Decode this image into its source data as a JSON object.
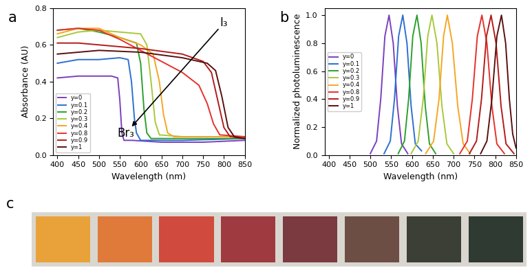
{
  "chart_data": [
    {
      "type": "line",
      "title": "a",
      "x_label": "Wavelength (nm)",
      "y_label": "Absorbance (AU)",
      "xlim": [
        390,
        850
      ],
      "xticks": [
        400,
        450,
        500,
        550,
        600,
        650,
        700,
        750,
        800,
        850
      ],
      "ylim": [
        0,
        0.8
      ],
      "yticks": [
        {
          "value": 0,
          "label": "0.0"
        },
        0.2,
        0.4,
        0.6,
        0.8
      ],
      "legend": "lower left",
      "annotations": [
        {
          "text": "I₃",
          "x": 800,
          "y": 0.72
        },
        {
          "text": "Br₃",
          "x": 565,
          "y": 0.12
        }
      ],
      "series": [
        {
          "name": "y=0",
          "color": "#7b3fbf",
          "x": [
            400,
            450,
            500,
            530,
            545,
            550,
            555,
            560,
            580,
            650,
            750,
            850
          ],
          "values": [
            0.42,
            0.43,
            0.43,
            0.43,
            0.42,
            0.3,
            0.12,
            0.08,
            0.08,
            0.07,
            0.07,
            0.08
          ]
        },
        {
          "name": "y=0.1",
          "color": "#2c6fd1",
          "x": [
            400,
            450,
            500,
            550,
            570,
            578,
            585,
            590,
            600,
            700,
            850
          ],
          "values": [
            0.5,
            0.52,
            0.52,
            0.53,
            0.52,
            0.4,
            0.2,
            0.12,
            0.08,
            0.08,
            0.09
          ]
        },
        {
          "name": "y=0.2",
          "color": "#2ca02c",
          "x": [
            400,
            450,
            500,
            550,
            590,
            600,
            608,
            615,
            625,
            700,
            850
          ],
          "values": [
            0.68,
            0.69,
            0.67,
            0.64,
            0.61,
            0.5,
            0.25,
            0.12,
            0.09,
            0.09,
            0.09
          ]
        },
        {
          "name": "y=0.3",
          "color": "#a8c83a",
          "x": [
            400,
            450,
            500,
            550,
            600,
            615,
            625,
            635,
            645,
            700,
            850
          ],
          "values": [
            0.64,
            0.67,
            0.68,
            0.67,
            0.66,
            0.6,
            0.4,
            0.18,
            0.11,
            0.1,
            0.1
          ]
        },
        {
          "name": "y=0.4",
          "color": "#f5a623",
          "x": [
            400,
            450,
            500,
            550,
            600,
            630,
            645,
            655,
            665,
            680,
            850
          ],
          "values": [
            0.66,
            0.69,
            0.69,
            0.64,
            0.6,
            0.55,
            0.4,
            0.22,
            0.12,
            0.1,
            0.1
          ]
        },
        {
          "name": "y=0.8",
          "color": "#e8302a",
          "x": [
            400,
            450,
            500,
            550,
            600,
            650,
            700,
            740,
            760,
            775,
            790,
            850
          ],
          "values": [
            0.68,
            0.69,
            0.68,
            0.63,
            0.57,
            0.51,
            0.45,
            0.38,
            0.28,
            0.17,
            0.11,
            0.1
          ]
        },
        {
          "name": "y=0.9",
          "color": "#b31b1b",
          "x": [
            400,
            450,
            500,
            600,
            700,
            750,
            770,
            785,
            800,
            815,
            850
          ],
          "values": [
            0.61,
            0.61,
            0.6,
            0.58,
            0.55,
            0.51,
            0.45,
            0.3,
            0.15,
            0.1,
            0.09
          ]
        },
        {
          "name": "y=1",
          "color": "#5a0f0f",
          "x": [
            400,
            450,
            500,
            600,
            700,
            760,
            780,
            795,
            810,
            825,
            850
          ],
          "values": [
            0.55,
            0.56,
            0.57,
            0.56,
            0.53,
            0.5,
            0.46,
            0.32,
            0.15,
            0.1,
            0.09
          ]
        }
      ]
    },
    {
      "type": "line",
      "title": "b",
      "x_label": "Wavelength (nm)",
      "y_label": "Normalized photoluminescence",
      "xlim": [
        390,
        850
      ],
      "xticks": [
        400,
        450,
        500,
        550,
        600,
        650,
        700,
        750,
        800,
        850
      ],
      "ylim": [
        0,
        1.05
      ],
      "yticks": [
        {
          "value": 0,
          "label": "0.0"
        },
        0.2,
        0.4,
        0.6,
        0.8,
        {
          "value": 1,
          "label": "1.0"
        }
      ],
      "legend": "center left",
      "series": [
        {
          "name": "y=0",
          "color": "#7b3fbf",
          "x": [
            500,
            515,
            525,
            535,
            545,
            555,
            565,
            575,
            590
          ],
          "values": [
            0.01,
            0.1,
            0.4,
            0.85,
            1.0,
            0.8,
            0.35,
            0.08,
            0.01
          ]
        },
        {
          "name": "y=0.1",
          "color": "#2c6fd1",
          "x": [
            533,
            548,
            558,
            568,
            578,
            588,
            598,
            608,
            623
          ],
          "values": [
            0.01,
            0.1,
            0.4,
            0.85,
            1.0,
            0.8,
            0.35,
            0.08,
            0.03
          ]
        },
        {
          "name": "y=0.2",
          "color": "#2ca02c",
          "x": [
            567,
            582,
            592,
            602,
            612,
            622,
            632,
            642,
            657
          ],
          "values": [
            0.01,
            0.1,
            0.4,
            0.85,
            1.0,
            0.8,
            0.35,
            0.08,
            0.01
          ]
        },
        {
          "name": "y=0.3",
          "color": "#a8c83a",
          "x": [
            598,
            615,
            627,
            638,
            648,
            660,
            672,
            684,
            700
          ],
          "values": [
            0.01,
            0.1,
            0.4,
            0.85,
            1.0,
            0.8,
            0.35,
            0.08,
            0.01
          ]
        },
        {
          "name": "y=0.4",
          "color": "#f5a623",
          "x": [
            633,
            652,
            665,
            676,
            685,
            697,
            710,
            723,
            740
          ],
          "values": [
            0.01,
            0.1,
            0.4,
            0.85,
            1.0,
            0.8,
            0.35,
            0.08,
            0.01
          ]
        },
        {
          "name": "y=0.8",
          "color": "#e8302a",
          "x": [
            715,
            733,
            745,
            757,
            768,
            780,
            792,
            804,
            822
          ],
          "values": [
            0.01,
            0.1,
            0.4,
            0.85,
            1.0,
            0.8,
            0.35,
            0.08,
            0.01
          ]
        },
        {
          "name": "y=0.9",
          "color": "#b31b1b",
          "x": [
            738,
            755,
            767,
            779,
            790,
            802,
            814,
            826,
            845
          ],
          "values": [
            0.01,
            0.1,
            0.4,
            0.85,
            1.0,
            0.8,
            0.35,
            0.08,
            0.01
          ]
        },
        {
          "name": "y=1",
          "color": "#5a0f0f",
          "x": [
            765,
            780,
            792,
            804,
            815,
            825,
            834,
            842,
            850
          ],
          "values": [
            0.01,
            0.1,
            0.4,
            0.85,
            1.0,
            0.8,
            0.4,
            0.15,
            0.05
          ]
        }
      ]
    },
    {
      "type": "swatches",
      "title": "c",
      "tick_labels": false,
      "colors": [
        "#e9a23a",
        "#e07a3a",
        "#d04a3e",
        "#9e3a40",
        "#7a3a40",
        "#6d4e45",
        "#3b3f35",
        "#2f3a33"
      ]
    }
  ]
}
